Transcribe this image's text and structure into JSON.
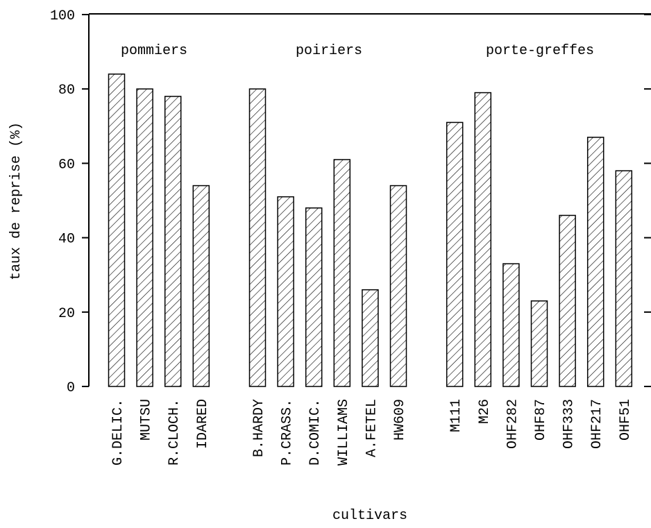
{
  "chart_data": {
    "type": "bar",
    "x_label": "cultivars",
    "y_label": "taux de reprise (%)",
    "annotations": [
      "pommiers",
      "poiriers",
      "porte-greffes"
    ],
    "categories": [
      "G.DELIC.",
      "MUTSU",
      "R.CLOCH.",
      "IDARED",
      null,
      "B.HARDY",
      "P.CRASS.",
      "D.COMIC.",
      "WILLIAMS",
      "A.FETEL",
      "HW609",
      null,
      "M111",
      "M26",
      "OHF282",
      "OHF87",
      "OHF333",
      "OHF217",
      "OHF51"
    ],
    "values": [
      84,
      80,
      78,
      54,
      null,
      80,
      51,
      48,
      61,
      26,
      54,
      null,
      71,
      79,
      33,
      23,
      46,
      67,
      58
    ],
    "color": "#000000",
    "ylim": [
      0,
      100
    ],
    "yticks": [
      0,
      20,
      40,
      60,
      80,
      100
    ]
  }
}
